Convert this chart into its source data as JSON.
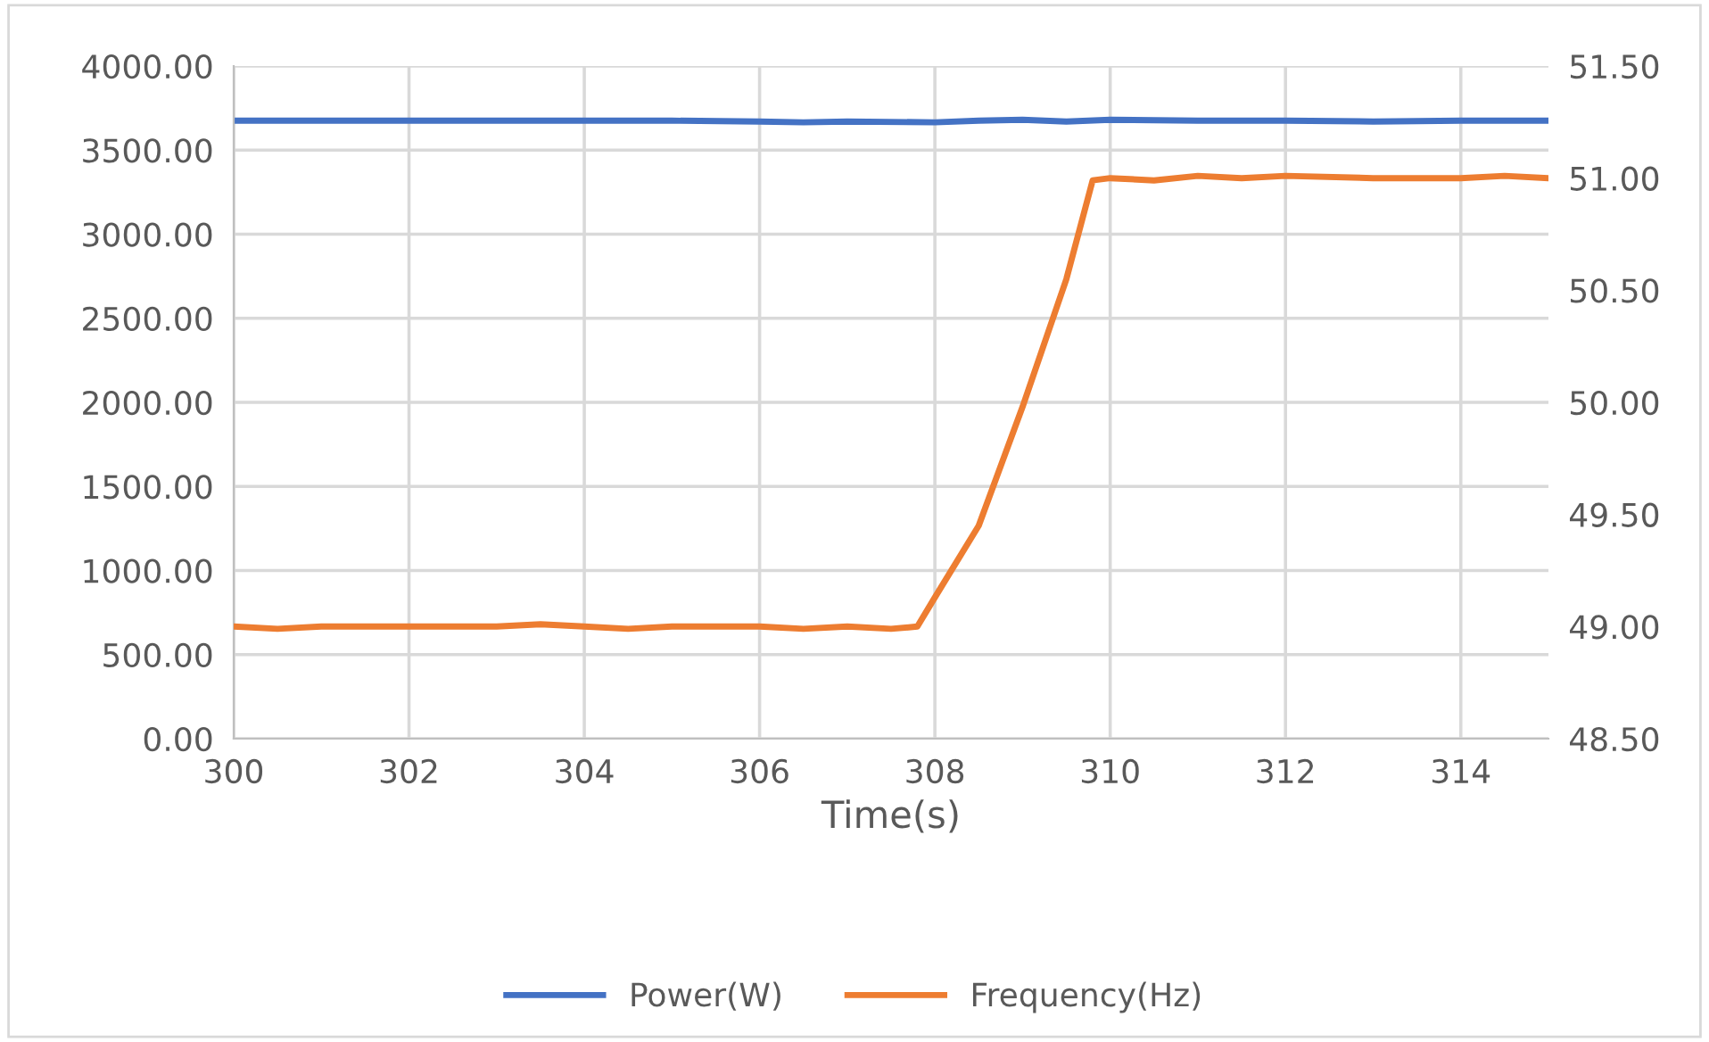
{
  "chart_data": {
    "type": "line",
    "xlabel": "Time(s)",
    "xlim": [
      300,
      315
    ],
    "xticks": [
      300,
      302,
      304,
      306,
      308,
      310,
      312,
      314
    ],
    "ylim": [
      0,
      4000
    ],
    "yticks": [
      {
        "value": 0,
        "label": "0.00"
      },
      {
        "value": 500,
        "label": "500.00"
      },
      {
        "value": 1000,
        "label": "1000.00"
      },
      {
        "value": 1500,
        "label": "1500.00"
      },
      {
        "value": 2000,
        "label": "2000.00"
      },
      {
        "value": 2500,
        "label": "2500.00"
      },
      {
        "value": 3000,
        "label": "3000.00"
      },
      {
        "value": 3500,
        "label": "3500.00"
      },
      {
        "value": 4000,
        "label": "4000.00"
      }
    ],
    "y2lim": [
      48.5,
      51.5
    ],
    "y2ticks": [
      {
        "value": 48.5,
        "label": "48.50"
      },
      {
        "value": 49.0,
        "label": "49.00"
      },
      {
        "value": 49.5,
        "label": "49.50"
      },
      {
        "value": 50.0,
        "label": "50.00"
      },
      {
        "value": 50.5,
        "label": "50.50"
      },
      {
        "value": 51.0,
        "label": "51.00"
      },
      {
        "value": 51.5,
        "label": "51.50"
      }
    ],
    "grid": true,
    "legend": "bottom",
    "series": [
      {
        "name": "Power(W)",
        "color": "#4472c4",
        "x": [
          300,
          301,
          302,
          303,
          304,
          305,
          306,
          306.5,
          307,
          308,
          308.5,
          309,
          309.5,
          310,
          311,
          312,
          313,
          314,
          315
        ],
        "values": [
          3675,
          3675,
          3675,
          3675,
          3675,
          3675,
          3670,
          3665,
          3670,
          3665,
          3675,
          3680,
          3670,
          3680,
          3675,
          3675,
          3670,
          3675,
          3675
        ]
      },
      {
        "name": "Frequency(Hz)",
        "color": "#ed7d31",
        "axis": "y2",
        "x": [
          300,
          300.5,
          301,
          302,
          303,
          303.5,
          304,
          304.5,
          305,
          306,
          306.5,
          307,
          307.5,
          307.8,
          308,
          308.5,
          309,
          309.5,
          309.8,
          310,
          310.5,
          311,
          311.5,
          312,
          313,
          314,
          314.5,
          315
        ],
        "values": [
          49.0,
          48.99,
          49.0,
          49.0,
          49.0,
          49.01,
          49.0,
          48.99,
          49.0,
          49.0,
          48.99,
          49.0,
          48.99,
          49.0,
          49.13,
          49.45,
          49.98,
          50.55,
          50.99,
          51.0,
          50.99,
          51.01,
          51.0,
          51.01,
          51.0,
          51.0,
          51.01,
          51.0
        ]
      }
    ]
  }
}
